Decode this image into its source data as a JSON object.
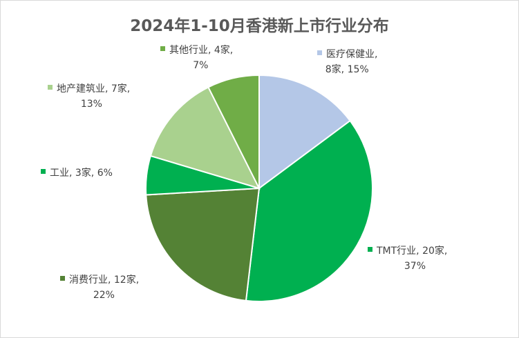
{
  "chart_data": {
    "type": "pie",
    "title": "2024年1-10月香港新上市行业分布",
    "slices": [
      {
        "name": "医疗保健业",
        "count_label": "8家",
        "percent_label": "15%",
        "value": 8,
        "color": "#b4c7e7",
        "label_lines": [
          "医疗保健业,",
          "8家, 15%"
        ]
      },
      {
        "name": "TMT行业",
        "count_label": "20家",
        "percent_label": "37%",
        "value": 20,
        "color": "#00b050",
        "label_lines": [
          "TMT行业, 20家,",
          "37%"
        ]
      },
      {
        "name": "消费行业",
        "count_label": "12家",
        "percent_label": "22%",
        "value": 12,
        "color": "#548235",
        "label_lines": [
          "消费行业, 12家,",
          "22%"
        ]
      },
      {
        "name": "工业",
        "count_label": "3家",
        "percent_label": "6%",
        "value": 3,
        "color": "#00b050",
        "label_lines": [
          "工业, 3家, 6%"
        ]
      },
      {
        "name": "地产建筑业",
        "count_label": "7家",
        "percent_label": "13%",
        "value": 7,
        "color": "#a9d18e",
        "label_lines": [
          "地产建筑业, 7家,",
          "13%"
        ]
      },
      {
        "name": "其他行业",
        "count_label": "4家",
        "percent_label": "7%",
        "value": 4,
        "color": "#70ad47",
        "label_lines": [
          "其他行业, 4家,",
          "7%"
        ]
      }
    ]
  }
}
